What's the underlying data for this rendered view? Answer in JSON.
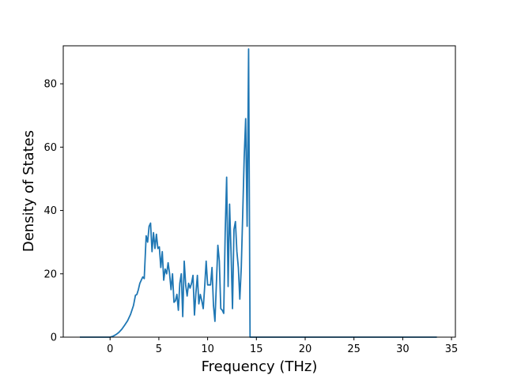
{
  "chart_data": {
    "type": "line",
    "title": "",
    "xlabel": "Frequency (THz)",
    "ylabel": "Density of States",
    "xlim": [
      -4.8,
      35.4
    ],
    "ylim": [
      0,
      92
    ],
    "xticks": [
      0,
      5,
      10,
      15,
      20,
      25,
      30,
      35
    ],
    "yticks": [
      0,
      20,
      40,
      60,
      80
    ],
    "grid": false,
    "line_color": "#1f77b4",
    "series": [
      {
        "x": [
          -3.1,
          -1.0,
          0.0,
          0.3,
          0.6,
          0.9,
          1.2,
          1.5,
          1.8,
          2.1,
          2.4,
          2.6,
          2.75,
          2.9,
          3.05,
          3.2,
          3.35,
          3.5,
          3.7,
          3.85,
          4.0,
          4.15,
          4.3,
          4.45,
          4.6,
          4.75,
          4.9,
          5.05,
          5.2,
          5.35,
          5.5,
          5.65,
          5.8,
          5.95,
          6.1,
          6.25,
          6.4,
          6.55,
          6.7,
          6.85,
          7.0,
          7.15,
          7.3,
          7.45,
          7.6,
          7.75,
          7.9,
          8.05,
          8.2,
          8.35,
          8.5,
          8.65,
          8.8,
          8.95,
          9.1,
          9.25,
          9.4,
          9.55,
          9.7,
          9.85,
          10.0,
          10.15,
          10.3,
          10.45,
          10.6,
          10.75,
          10.9,
          11.05,
          11.2,
          11.35,
          11.5,
          11.65,
          11.8,
          11.95,
          12.1,
          12.25,
          12.4,
          12.55,
          12.7,
          12.85,
          13.0,
          13.15,
          13.3,
          13.45,
          13.6,
          13.75,
          13.9,
          14.05,
          14.2,
          14.35,
          14.5,
          14.65,
          14.8,
          14.95,
          15.1,
          15.25,
          15.4,
          15.55,
          15.7,
          15.85,
          16.0,
          16.15,
          16.3,
          16.45,
          16.6,
          17.0,
          20.0,
          25.0,
          30.0,
          33.5
        ],
        "y": [
          0,
          0,
          0,
          0.3,
          0.8,
          1.5,
          2.5,
          3.8,
          5.2,
          7.2,
          10.0,
          13.2,
          13.5,
          15.0,
          17.0,
          18.0,
          19.0,
          18.5,
          32.0,
          30.0,
          35.0,
          36.0,
          27.0,
          33.0,
          28.0,
          32.5,
          28.0,
          28.5,
          22.0,
          27.0,
          18.0,
          21.5,
          20.0,
          23.5,
          20.0,
          15.0,
          20.0,
          11.0,
          11.5,
          13.5,
          8.5,
          17.0,
          20.0,
          6.5,
          24.0,
          16.5,
          13.0,
          17.0,
          15.5,
          17.0,
          19.5,
          7.0,
          14.0,
          19.5,
          10.5,
          13.5,
          11.5,
          9.0,
          16.0,
          24.0,
          16.5,
          16.5,
          16.5,
          22.0,
          10.0,
          5.0,
          17.0,
          29.0,
          24.0,
          9.0,
          8.5,
          7.5,
          33.0,
          50.5,
          16.0,
          42.0,
          27.0,
          9.0,
          34.0,
          36.5,
          27.0,
          22.0,
          12.0,
          22.0,
          39.0,
          57.0,
          69.0,
          35.0,
          91.0,
          0,
          0,
          0,
          0,
          0,
          0,
          0,
          0,
          0,
          0,
          0,
          0,
          0,
          0,
          0,
          0,
          0,
          0,
          0,
          0,
          0
        ],
        "note": ""
      }
    ]
  }
}
